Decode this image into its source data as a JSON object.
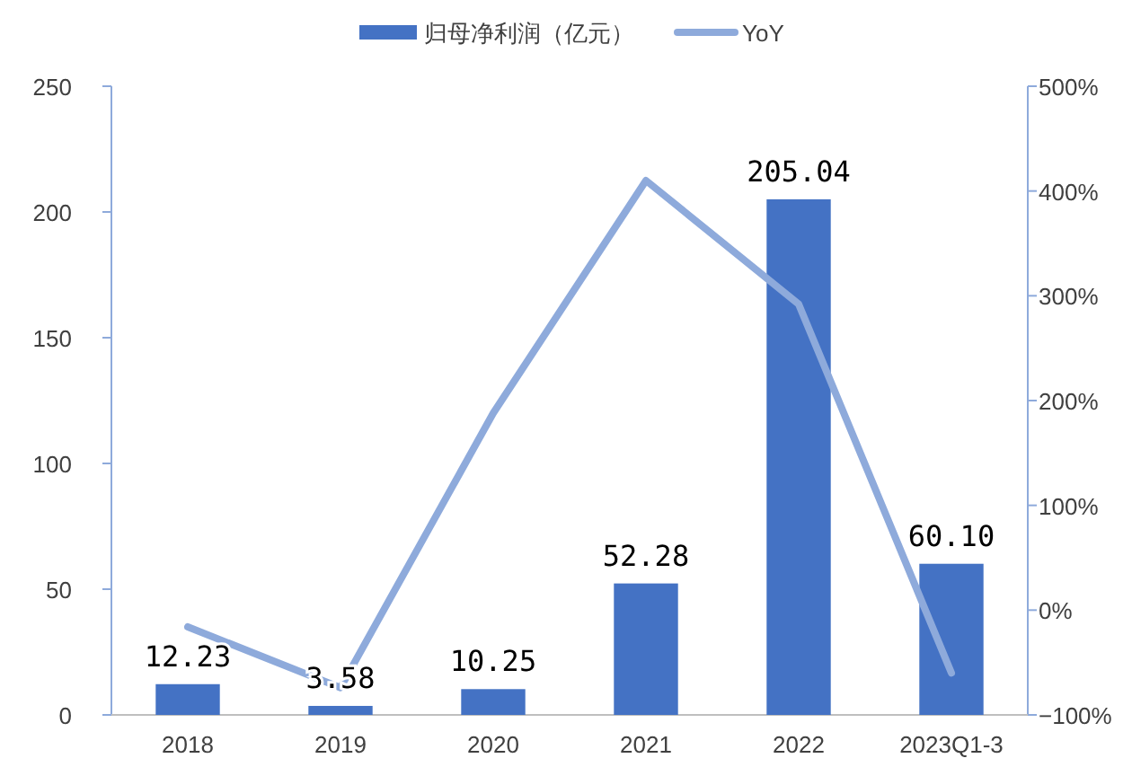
{
  "chart_data": {
    "type": "bar",
    "categories": [
      "2018",
      "2019",
      "2020",
      "2021",
      "2022",
      "2023Q1-3"
    ],
    "series": [
      {
        "name": "归母净利润（亿元）",
        "color": "#4472c4",
        "values": [
          12.23,
          3.58,
          10.25,
          52.28,
          205.04,
          60.1
        ],
        "value_labels": [
          "12.23",
          "3.58",
          "10.25",
          "52.28",
          "205.04",
          "60.10"
        ]
      },
      {
        "name": "YoY",
        "type": "line",
        "axis": "y2",
        "color": "#8eaadb",
        "values": [
          -16,
          -74,
          188,
          410,
          292,
          -60
        ]
      }
    ],
    "ylim": [
      0,
      250
    ],
    "yticks": [
      0,
      50,
      100,
      150,
      200,
      250
    ],
    "y2lim": [
      -100,
      500
    ],
    "y2ticks": [
      {
        "value": -100,
        "label": "−100%"
      },
      {
        "value": 0,
        "label": "0%"
      },
      {
        "value": 100,
        "label": "100%"
      },
      {
        "value": 200,
        "label": "200%"
      },
      {
        "value": 300,
        "label": "300%"
      },
      {
        "value": 400,
        "label": "400%"
      },
      {
        "value": 500,
        "label": "500%"
      }
    ],
    "legend": "top",
    "grid": false,
    "marker": "none"
  }
}
